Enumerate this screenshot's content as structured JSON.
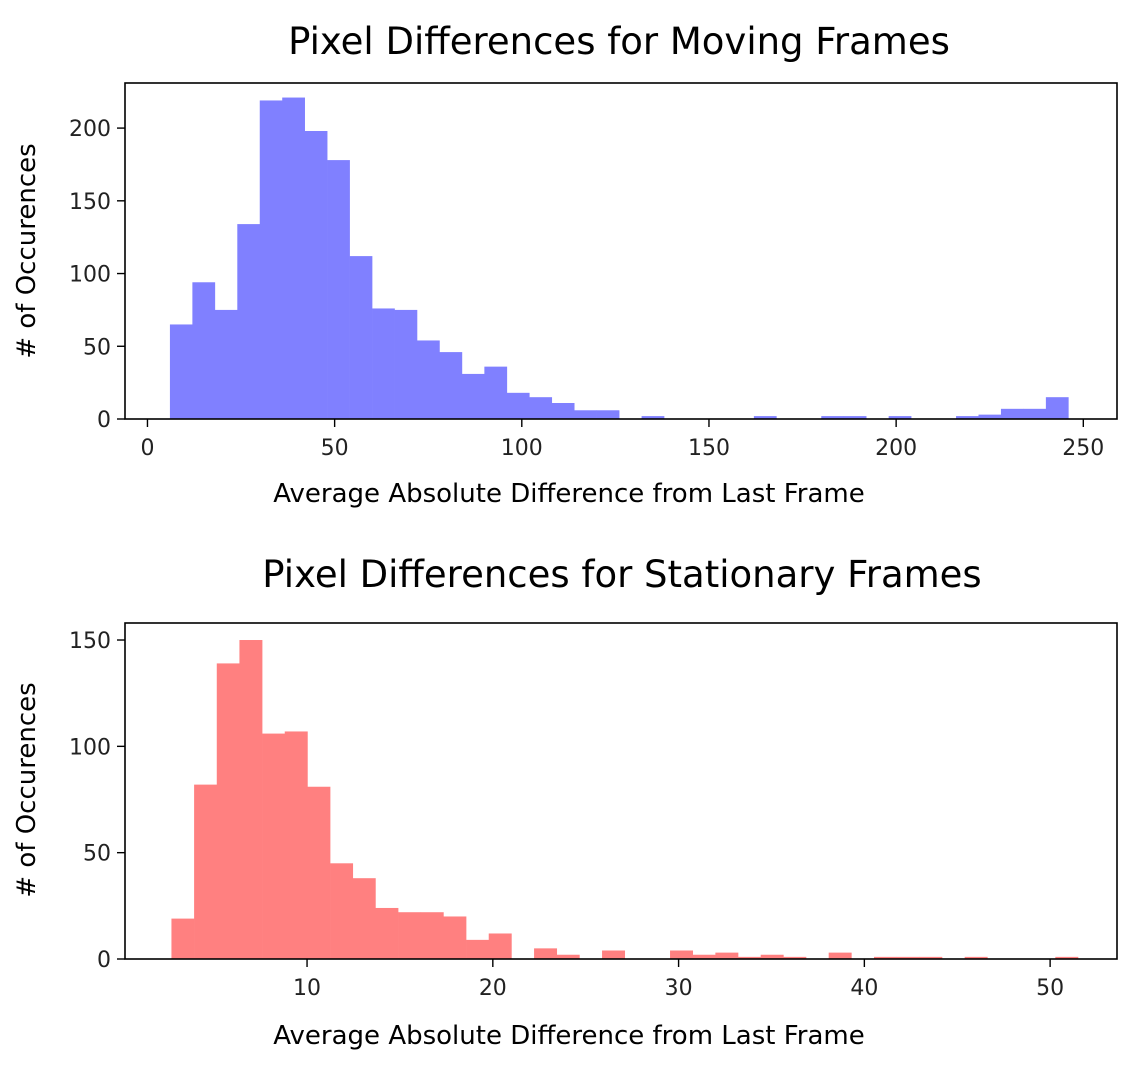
{
  "chart_data": [
    {
      "type": "bar",
      "title": "Pixel Differences for Moving Frames",
      "xlabel": "Average Absolute Difference from Last Frame",
      "ylabel": "# of Occurences",
      "xlim": [
        -6,
        259
      ],
      "ylim": [
        0,
        231
      ],
      "xticks": [
        0,
        50,
        100,
        150,
        200,
        250
      ],
      "yticks": [
        0,
        50,
        100,
        150,
        200
      ],
      "color": "#8080ff",
      "bin_edges": [
        6,
        12,
        18,
        24,
        30,
        36,
        42,
        48,
        54,
        60,
        66,
        72,
        78,
        84,
        90,
        96,
        102,
        108,
        114,
        120,
        126,
        132,
        138,
        144,
        150,
        156,
        162,
        168,
        174,
        180,
        186,
        192,
        198,
        204,
        210,
        216,
        222,
        228,
        234,
        240,
        246
      ],
      "values": [
        65,
        94,
        75,
        134,
        219,
        221,
        198,
        178,
        112,
        76,
        75,
        54,
        46,
        31,
        36,
        18,
        15,
        11,
        6,
        6,
        0,
        2,
        0,
        0,
        0,
        0,
        2,
        0,
        0,
        2,
        2,
        0,
        2,
        0,
        0,
        2,
        3,
        7,
        7,
        15
      ]
    },
    {
      "type": "bar",
      "title": "Pixel Differences for Stationary Frames",
      "xlabel": "Average Absolute Difference from Last Frame",
      "ylabel": "# of Occurences",
      "xlim": [
        0.2,
        53.6
      ],
      "ylim": [
        0,
        158
      ],
      "xticks": [
        10,
        20,
        30,
        40,
        50
      ],
      "yticks": [
        0,
        50,
        100,
        150
      ],
      "color": "#ff8080",
      "bin_edges": [
        2.7,
        3.92,
        5.14,
        6.36,
        7.58,
        8.8,
        10.02,
        11.24,
        12.46,
        13.68,
        14.9,
        16.12,
        17.34,
        18.56,
        19.78,
        21.0,
        22.22,
        23.44,
        24.66,
        25.88,
        27.1,
        28.32,
        29.54,
        30.76,
        31.98,
        33.2,
        34.42,
        35.64,
        36.86,
        38.08,
        39.3,
        40.52,
        41.74,
        42.96,
        44.18,
        45.4,
        46.62,
        47.84,
        49.06,
        50.28,
        51.5
      ],
      "values": [
        19,
        82,
        139,
        150,
        106,
        107,
        81,
        45,
        38,
        24,
        22,
        22,
        20,
        9,
        12,
        0,
        5,
        2,
        0,
        4,
        0,
        0,
        4,
        2,
        3,
        1,
        2,
        1,
        0,
        3,
        0,
        1,
        1,
        1,
        0,
        1,
        0,
        0,
        0,
        1
      ]
    }
  ]
}
